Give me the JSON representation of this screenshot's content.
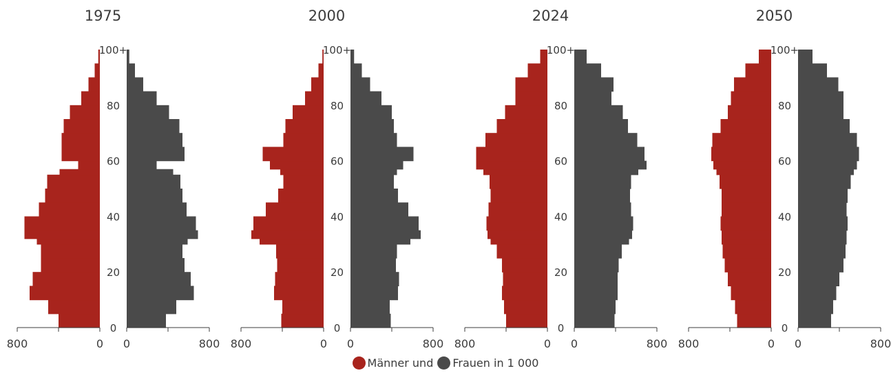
{
  "colors": {
    "men": "#a8241d",
    "women": "#4a4a4a",
    "axis": "#3c3c3c"
  },
  "legend": {
    "men_label": "Männer und",
    "women_label": "Frauen in 1 000"
  },
  "chart_data": {
    "type": "bar",
    "orientation": "horizontal",
    "subtype": "population-pyramid",
    "unit": "1 000",
    "age_ticks": [
      "0",
      "20",
      "40",
      "60",
      "80",
      "100+"
    ],
    "x_tick_labels": [
      "800",
      "0",
      "0",
      "800"
    ],
    "xlim": [
      0,
      800
    ],
    "ages": [
      0,
      5,
      10,
      15,
      20,
      25,
      30,
      32,
      35,
      40,
      45,
      50,
      55,
      57,
      60,
      65,
      70,
      75,
      80,
      85,
      90,
      95,
      100
    ],
    "panels": [
      {
        "year": "1975",
        "men": [
          400,
          500,
          680,
          650,
          570,
          570,
          610,
          730,
          730,
          590,
          530,
          510,
          390,
          210,
          370,
          370,
          350,
          290,
          180,
          110,
          50,
          15,
          3
        ],
        "women": [
          380,
          480,
          650,
          620,
          560,
          540,
          590,
          690,
          670,
          580,
          540,
          520,
          450,
          290,
          560,
          540,
          510,
          410,
          290,
          160,
          80,
          25,
          5
        ]
      },
      {
        "year": "2000",
        "men": [
          410,
          400,
          480,
          470,
          450,
          460,
          620,
          700,
          680,
          560,
          440,
          390,
          420,
          520,
          590,
          390,
          370,
          300,
          180,
          120,
          50,
          12,
          2
        ],
        "women": [
          390,
          380,
          460,
          470,
          440,
          450,
          580,
          680,
          660,
          560,
          460,
          420,
          450,
          510,
          610,
          450,
          420,
          400,
          300,
          190,
          110,
          35,
          5
        ]
      },
      {
        "year": "2024",
        "men": [
          400,
          420,
          440,
          430,
          440,
          490,
          550,
          580,
          590,
          570,
          550,
          560,
          620,
          690,
          690,
          600,
          490,
          410,
          310,
          310,
          190,
          70,
          10
        ],
        "women": [
          390,
          400,
          420,
          420,
          430,
          460,
          530,
          560,
          570,
          550,
          540,
          550,
          620,
          700,
          680,
          610,
          520,
          470,
          360,
          380,
          260,
          120,
          20
        ]
      },
      {
        "year": "2050",
        "men": [
          330,
          350,
          390,
          420,
          450,
          470,
          480,
          480,
          490,
          480,
          480,
          500,
          530,
          560,
          580,
          570,
          490,
          420,
          390,
          360,
          250,
          120,
          20
        ],
        "women": [
          320,
          340,
          370,
          400,
          440,
          460,
          470,
          470,
          480,
          470,
          480,
          510,
          540,
          570,
          590,
          570,
          500,
          440,
          440,
          390,
          280,
          140,
          30
        ]
      }
    ]
  }
}
